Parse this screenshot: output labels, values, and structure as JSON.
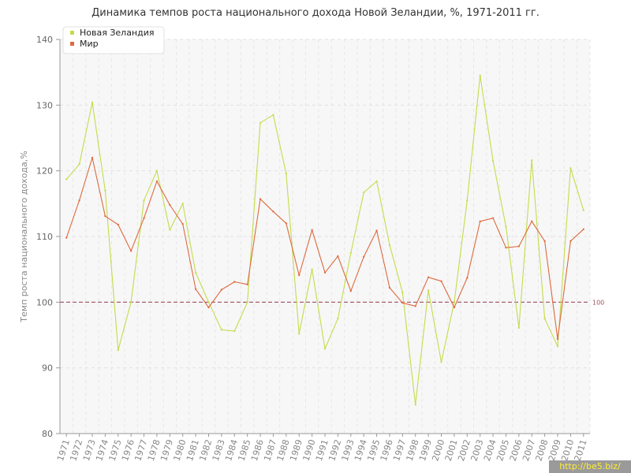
{
  "chart_data": {
    "type": "line",
    "title": "Динамика темпов роста национального дохода Новой Зеландии, %, 1971-2011 гг.",
    "ylabel": "Темп роста национального дохода,%",
    "xlabel": "",
    "ylim": [
      80,
      140
    ],
    "yticks": [
      80,
      90,
      100,
      110,
      120,
      130,
      140
    ],
    "x": [
      "1971",
      "1972",
      "1973",
      "1974",
      "1975",
      "1976",
      "1977",
      "1978",
      "1979",
      "1980",
      "1981",
      "1982",
      "1983",
      "1984",
      "1985",
      "1986",
      "1987",
      "1988",
      "1989",
      "1990",
      "1991",
      "1992",
      "1993",
      "1994",
      "1995",
      "1996",
      "1997",
      "1998",
      "1999",
      "2000",
      "2001",
      "2002",
      "2003",
      "2004",
      "2005",
      "2006",
      "2007",
      "2008",
      "2009",
      "2010",
      "2011"
    ],
    "series": [
      {
        "name": "Новая Зеландия",
        "color": "#c4dc4a",
        "values": [
          118.7,
          121.0,
          130.4,
          117.0,
          92.7,
          100.0,
          115.5,
          120.0,
          111.0,
          115.0,
          104.5,
          100.0,
          95.8,
          95.6,
          100.0,
          127.3,
          128.5,
          119.6,
          95.2,
          105.0,
          92.9,
          97.5,
          107.5,
          116.7,
          118.4,
          108.7,
          101.5,
          84.4,
          101.8,
          90.9,
          100.0,
          115.5,
          134.5,
          121.5,
          111.5,
          96.1,
          121.6,
          97.5,
          93.3,
          120.4,
          114.0
        ]
      },
      {
        "name": "Мир",
        "color": "#dd6a3e",
        "values": [
          109.8,
          115.5,
          122.0,
          113.1,
          111.8,
          107.8,
          112.8,
          118.4,
          114.8,
          111.9,
          102.0,
          99.2,
          101.9,
          103.1,
          102.7,
          115.7,
          113.8,
          112.0,
          104.1,
          111.0,
          104.5,
          107.0,
          101.7,
          106.9,
          110.9,
          102.2,
          99.9,
          99.4,
          103.8,
          103.2,
          99.2,
          103.7,
          112.3,
          112.8,
          108.3,
          108.5,
          112.3,
          109.3,
          94.4,
          109.3,
          111.1
        ]
      }
    ],
    "reference_line": {
      "value": 100,
      "label": "100",
      "color": "#a05060"
    },
    "grid": true,
    "legend_position": "top-left"
  },
  "watermark": "http://be5.biz/"
}
